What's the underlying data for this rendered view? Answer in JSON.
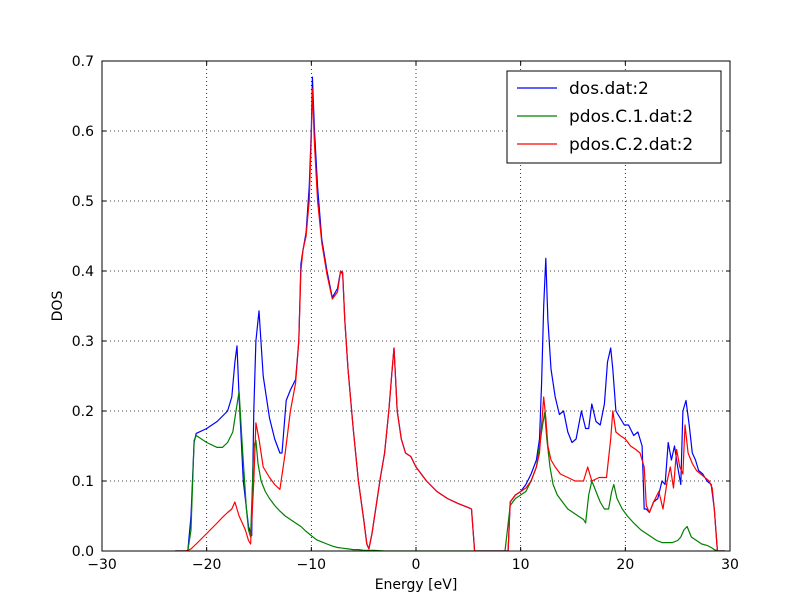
{
  "chart_data": {
    "type": "line",
    "xlabel": "Energy [eV]",
    "ylabel": "DOS",
    "xlim": [
      -30,
      30
    ],
    "ylim": [
      0,
      0.7
    ],
    "xticks": [
      -30,
      -20,
      -10,
      0,
      10,
      20,
      30
    ],
    "yticks": [
      0.0,
      0.1,
      0.2,
      0.3,
      0.4,
      0.5,
      0.6,
      0.7
    ],
    "xtick_labels": [
      "−30",
      "−20",
      "−10",
      "0",
      "10",
      "20",
      "30"
    ],
    "ytick_labels": [
      "0.0",
      "0.1",
      "0.2",
      "0.3",
      "0.4",
      "0.5",
      "0.6",
      "0.7"
    ],
    "grid": true,
    "legend_position": "top-right",
    "series": [
      {
        "name": "dos.dat:2",
        "color": "#0000ff",
        "x": [
          -23,
          -21.8,
          -21.5,
          -21.2,
          -21,
          -20,
          -19,
          -18,
          -17.6,
          -17.3,
          -17.1,
          -16.9,
          -16.5,
          -16.0,
          -15.7,
          -15.5,
          -15.3,
          -15.0,
          -14.6,
          -14.0,
          -13.5,
          -13.0,
          -12.8,
          -12.4,
          -12.0,
          -11.5,
          -11.2,
          -11.0,
          -10.8,
          -10.5,
          -10.2,
          -10.0,
          -9.9,
          -9.7,
          -9.4,
          -9.0,
          -8.5,
          -8.0,
          -7.5,
          -7.2,
          -7.0,
          -6.8,
          -6.5,
          -6.0,
          -5.5,
          -5.0,
          -4.7,
          -4.5,
          -4.2,
          -3.8,
          -3.4,
          -3.0,
          -2.6,
          -2.3,
          -2.1,
          -2.0,
          -1.8,
          -1.4,
          -1.0,
          -0.5,
          0,
          1,
          2,
          3,
          4,
          5,
          5.3,
          5.6,
          6,
          7,
          8,
          8.8,
          9.0,
          9.5,
          10,
          10.5,
          11,
          11.5,
          11.8,
          12.0,
          12.2,
          12.4,
          12.6,
          12.9,
          13.3,
          13.7,
          14.1,
          14.5,
          14.9,
          15.3,
          15.8,
          16.2,
          16.5,
          16.8,
          17.2,
          17.6,
          18.0,
          18.3,
          18.6,
          18.8,
          19.1,
          19.5,
          19.9,
          20.3,
          20.8,
          21.2,
          21.6,
          21.8,
          22.0,
          22.3,
          22.7,
          23.1,
          23.5,
          23.8,
          24.1,
          24.4,
          24.7,
          25.0,
          25.3,
          25.5,
          25.8,
          26.1,
          26.4,
          26.7,
          27.0,
          27.4,
          27.8,
          28.2,
          28.5,
          28.8,
          29.5
        ],
        "y": [
          0,
          0,
          0.05,
          0.155,
          0.168,
          0.175,
          0.185,
          0.2,
          0.22,
          0.27,
          0.293,
          0.22,
          0.1,
          0.035,
          0.022,
          0.2,
          0.3,
          0.343,
          0.25,
          0.19,
          0.16,
          0.14,
          0.14,
          0.215,
          0.23,
          0.245,
          0.3,
          0.41,
          0.43,
          0.455,
          0.52,
          0.6,
          0.677,
          0.6,
          0.52,
          0.445,
          0.4,
          0.362,
          0.375,
          0.4,
          0.395,
          0.33,
          0.26,
          0.175,
          0.1,
          0.045,
          0.01,
          0.003,
          0.025,
          0.065,
          0.105,
          0.14,
          0.2,
          0.255,
          0.29,
          0.26,
          0.2,
          0.16,
          0.14,
          0.135,
          0.12,
          0.1,
          0.085,
          0.075,
          0.068,
          0.062,
          0.06,
          0,
          0,
          0,
          0,
          0,
          0.07,
          0.08,
          0.085,
          0.095,
          0.11,
          0.13,
          0.16,
          0.24,
          0.35,
          0.418,
          0.33,
          0.26,
          0.22,
          0.195,
          0.2,
          0.17,
          0.155,
          0.16,
          0.2,
          0.175,
          0.175,
          0.21,
          0.185,
          0.18,
          0.21,
          0.27,
          0.29,
          0.26,
          0.2,
          0.19,
          0.18,
          0.18,
          0.165,
          0.17,
          0.15,
          0.06,
          0.06,
          0.055,
          0.07,
          0.075,
          0.1,
          0.095,
          0.155,
          0.13,
          0.15,
          0.12,
          0.095,
          0.2,
          0.215,
          0.18,
          0.14,
          0.13,
          0.115,
          0.11,
          0.1,
          0.095,
          0.06,
          0,
          0
        ]
      },
      {
        "name": "pdos.C.1.dat:2",
        "color": "#008000",
        "x": [
          -23,
          -21.8,
          -21.5,
          -21.2,
          -21,
          -20,
          -19,
          -18.5,
          -18,
          -17.5,
          -17.2,
          -16.9,
          -16.6,
          -16.2,
          -16.0,
          -15.8,
          -15.5,
          -15.3,
          -15.1,
          -14.8,
          -14.4,
          -14.0,
          -13.5,
          -13.0,
          -12.5,
          -12.0,
          -11.5,
          -11.0,
          -10.5,
          -10.0,
          -9.5,
          -9.0,
          -8.5,
          -8.0,
          -7.5,
          -7.0,
          -6.5,
          -6.0,
          -5.5,
          -5.0,
          -4.0,
          -3.0,
          0,
          5.5,
          8.5,
          9.0,
          9.5,
          10,
          10.5,
          11,
          11.5,
          11.8,
          12.1,
          12.3,
          12.5,
          12.8,
          13.1,
          13.5,
          14,
          14.5,
          15,
          15.5,
          16,
          16.2,
          16.5,
          16.8,
          17.2,
          17.6,
          18,
          18.4,
          18.7,
          18.9,
          19.2,
          19.7,
          20.2,
          20.8,
          21.5,
          22.0,
          22.5,
          23,
          23.5,
          24,
          24.5,
          25,
          25.3,
          25.6,
          25.9,
          26.3,
          26.8,
          27.3,
          27.8,
          28.2,
          28.5,
          28.8,
          29.5
        ],
        "y": [
          0,
          0,
          0.03,
          0.158,
          0.165,
          0.155,
          0.148,
          0.148,
          0.155,
          0.17,
          0.2,
          0.228,
          0.15,
          0.06,
          0.03,
          0.02,
          0.15,
          0.158,
          0.125,
          0.1,
          0.085,
          0.075,
          0.065,
          0.057,
          0.05,
          0.045,
          0.04,
          0.035,
          0.028,
          0.022,
          0.016,
          0.013,
          0.01,
          0.007,
          0.005,
          0.004,
          0.003,
          0.002,
          0.002,
          0.001,
          0.001,
          0,
          0,
          0,
          0,
          0.065,
          0.075,
          0.08,
          0.085,
          0.1,
          0.12,
          0.15,
          0.18,
          0.198,
          0.16,
          0.12,
          0.095,
          0.08,
          0.07,
          0.06,
          0.055,
          0.05,
          0.045,
          0.04,
          0.08,
          0.1,
          0.085,
          0.07,
          0.06,
          0.06,
          0.085,
          0.095,
          0.075,
          0.06,
          0.05,
          0.04,
          0.03,
          0.025,
          0.02,
          0.015,
          0.012,
          0.012,
          0.012,
          0.015,
          0.02,
          0.03,
          0.035,
          0.02,
          0.015,
          0.01,
          0.008,
          0.005,
          0.002,
          0,
          0
        ]
      },
      {
        "name": "pdos.C.2.dat:2",
        "color": "#ff0000",
        "x": [
          -23,
          -22.0,
          -21.5,
          -21,
          -20,
          -19,
          -18.5,
          -18,
          -17.6,
          -17.3,
          -17.1,
          -16.9,
          -16.6,
          -16.3,
          -16.0,
          -15.8,
          -15.5,
          -15.3,
          -15.0,
          -14.6,
          -14.0,
          -13.5,
          -13.0,
          -12.5,
          -12.0,
          -11.5,
          -11.2,
          -11.0,
          -10.8,
          -10.5,
          -10.2,
          -10.0,
          -9.9,
          -9.7,
          -9.4,
          -9.0,
          -8.5,
          -8.0,
          -7.5,
          -7.2,
          -7.0,
          -6.8,
          -6.5,
          -6.0,
          -5.5,
          -5.0,
          -4.7,
          -4.5,
          -4.2,
          -3.8,
          -3.4,
          -3.0,
          -2.6,
          -2.3,
          -2.1,
          -2.0,
          -1.8,
          -1.4,
          -1.0,
          -0.5,
          0,
          1,
          2,
          3,
          4,
          5,
          5.3,
          5.6,
          6,
          7,
          8,
          8.8,
          9.0,
          9.5,
          10,
          10.5,
          11,
          11.5,
          11.8,
          12.0,
          12.2,
          12.4,
          12.6,
          12.9,
          13.3,
          13.8,
          14.5,
          15.2,
          16,
          16.4,
          16.8,
          17.5,
          18.2,
          18.6,
          18.8,
          19.1,
          19.5,
          20,
          20.5,
          21,
          21.4,
          21.8,
          22.0,
          22.3,
          22.7,
          23.2,
          23.6,
          24.0,
          24.3,
          24.6,
          24.9,
          25.2,
          25.5,
          25.7,
          26.0,
          26.4,
          26.8,
          27.2,
          27.6,
          28.0,
          28.3,
          28.5,
          28.8,
          29.5
        ],
        "y": [
          0,
          0,
          0.003,
          0.01,
          0.025,
          0.04,
          0.048,
          0.055,
          0.06,
          0.07,
          0.06,
          0.05,
          0.04,
          0.03,
          0.015,
          0.01,
          0.1,
          0.183,
          0.16,
          0.12,
          0.105,
          0.095,
          0.088,
          0.14,
          0.2,
          0.24,
          0.3,
          0.4,
          0.43,
          0.45,
          0.5,
          0.59,
          0.66,
          0.58,
          0.5,
          0.44,
          0.395,
          0.36,
          0.37,
          0.4,
          0.398,
          0.33,
          0.26,
          0.175,
          0.1,
          0.045,
          0.01,
          0.003,
          0.025,
          0.065,
          0.105,
          0.14,
          0.2,
          0.255,
          0.29,
          0.26,
          0.2,
          0.16,
          0.14,
          0.135,
          0.12,
          0.1,
          0.085,
          0.075,
          0.068,
          0.062,
          0.06,
          0,
          0,
          0,
          0,
          0,
          0.07,
          0.08,
          0.085,
          0.09,
          0.1,
          0.12,
          0.14,
          0.18,
          0.22,
          0.19,
          0.15,
          0.13,
          0.12,
          0.11,
          0.105,
          0.1,
          0.1,
          0.12,
          0.1,
          0.105,
          0.105,
          0.16,
          0.2,
          0.17,
          0.165,
          0.16,
          0.15,
          0.145,
          0.14,
          0.12,
          0.065,
          0.055,
          0.07,
          0.085,
          0.06,
          0.1,
          0.12,
          0.09,
          0.145,
          0.12,
          0.11,
          0.18,
          0.14,
          0.125,
          0.115,
          0.11,
          0.105,
          0.1,
          0.09,
          0.06,
          0,
          0
        ]
      }
    ]
  }
}
